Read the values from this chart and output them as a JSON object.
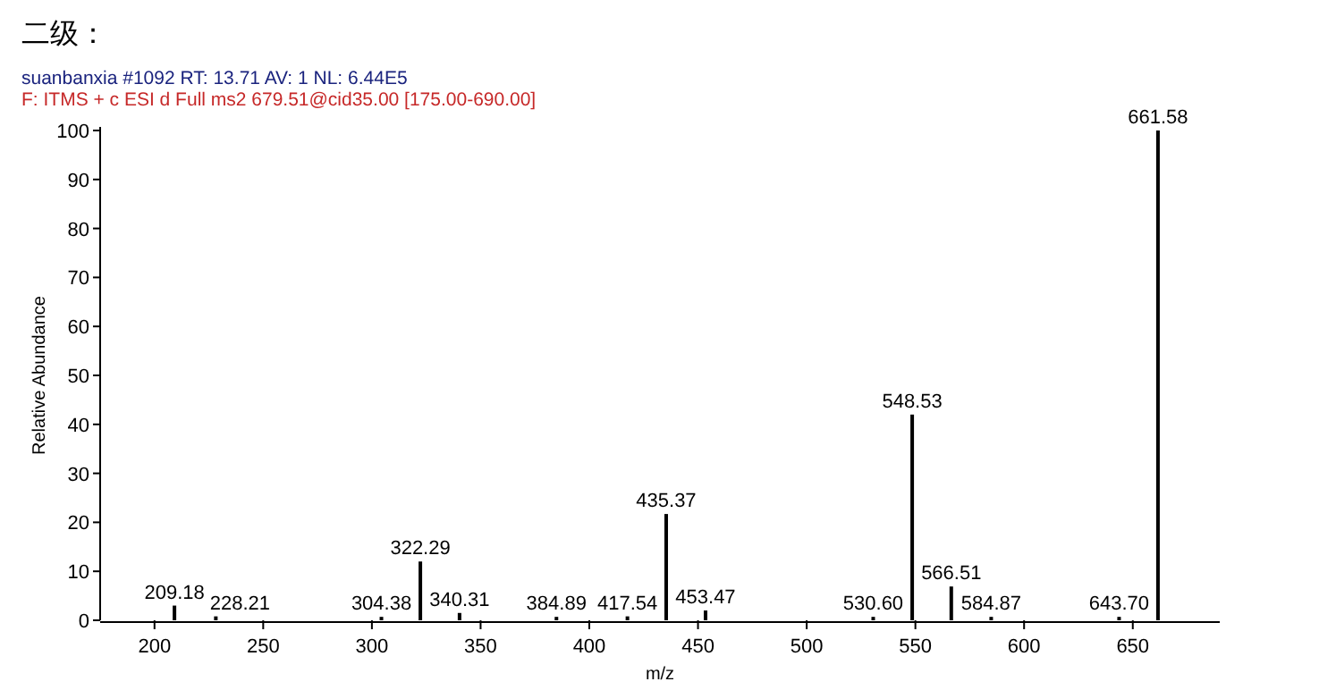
{
  "chart_data": {
    "type": "bar",
    "title": "二级：",
    "subtitle": "suanbanxia #1092  RT: 13.71  AV: 1  NL: 6.44E5",
    "annotations": [
      "F: ITMS + c ESI d Full ms2 679.51@cid35.00 [175.00-690.00]",
      {
        "text": "209.18",
        "x": 209.18,
        "y": 3
      },
      {
        "text": "228.21",
        "x": 228.21,
        "y": 0.8
      },
      {
        "text": "304.38",
        "x": 304.38,
        "y": 0.7
      },
      {
        "text": "322.29",
        "x": 322.29,
        "y": 12
      },
      {
        "text": "340.31",
        "x": 340.31,
        "y": 1.5
      },
      {
        "text": "384.89",
        "x": 384.89,
        "y": 0.7
      },
      {
        "text": "417.54",
        "x": 417.54,
        "y": 0.8
      },
      {
        "text": "435.37",
        "x": 435.37,
        "y": 21.7
      },
      {
        "text": "453.47",
        "x": 453.47,
        "y": 2
      },
      {
        "text": "530.60",
        "x": 530.6,
        "y": 0.7
      },
      {
        "text": "548.53",
        "x": 548.53,
        "y": 42
      },
      {
        "text": "566.51",
        "x": 566.51,
        "y": 6.9
      },
      {
        "text": "584.87",
        "x": 584.87,
        "y": 0.7
      },
      {
        "text": "643.70",
        "x": 643.7,
        "y": 0.7
      },
      {
        "text": "661.58",
        "x": 661.58,
        "y": 100
      }
    ],
    "xlabel": "m/z",
    "ylabel": "Relative Abundance",
    "x": [
      209.18,
      228.21,
      304.38,
      322.29,
      340.31,
      384.89,
      417.54,
      435.37,
      453.47,
      530.6,
      548.53,
      566.51,
      584.87,
      643.7,
      661.58
    ],
    "values": [
      3,
      0.8,
      0.7,
      12,
      1.5,
      0.7,
      0.8,
      21.7,
      2,
      0.7,
      42,
      6.9,
      0.7,
      0.7,
      100
    ],
    "color": "#000000",
    "xlim": [
      175,
      690
    ],
    "xticks": [
      200,
      250,
      300,
      350,
      400,
      450,
      500,
      550,
      600,
      650
    ],
    "ylim": [
      0,
      100
    ],
    "yticks": [
      0,
      10,
      20,
      30,
      40,
      50,
      60,
      70,
      80,
      90,
      100
    ],
    "grid": false
  }
}
